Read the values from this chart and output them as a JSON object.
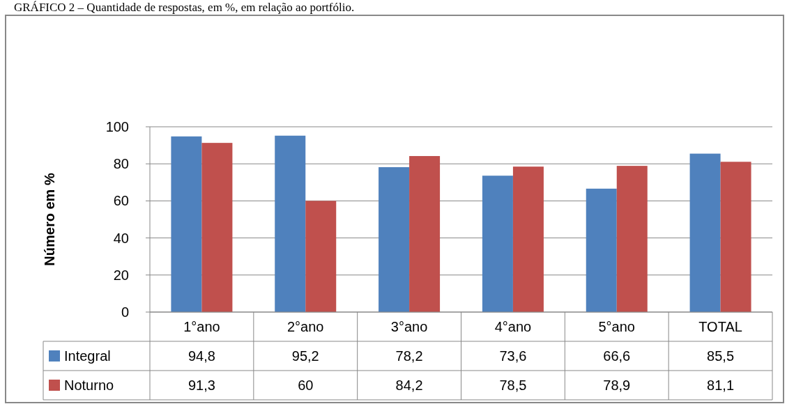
{
  "chart_data": {
    "type": "bar",
    "title": "GRÁFICO 2 – Quantidade de respostas, em %, em relação ao portfólio.",
    "ylabel": "Número em %",
    "categories": [
      "1°ano",
      "2°ano",
      "3°ano",
      "4°ano",
      "5°ano",
      "TOTAL"
    ],
    "series": [
      {
        "name": "Integral",
        "color": "#4f81bd",
        "values": [
          94.8,
          95.2,
          78.2,
          73.6,
          66.6,
          85.5
        ],
        "value_labels": [
          "94,8",
          "95,2",
          "78,2",
          "73,6",
          "66,6",
          "85,5"
        ]
      },
      {
        "name": "Noturno",
        "color": "#c0504d",
        "values": [
          91.3,
          60,
          84.2,
          78.5,
          78.9,
          81.1
        ],
        "value_labels": [
          "91,3",
          "60",
          "84,2",
          "78,5",
          "78,9",
          "81,1"
        ]
      }
    ],
    "ylim": [
      0,
      100
    ],
    "yticks": [
      0,
      20,
      40,
      60,
      80,
      100
    ],
    "grid": "y",
    "legend": "bottom left"
  }
}
